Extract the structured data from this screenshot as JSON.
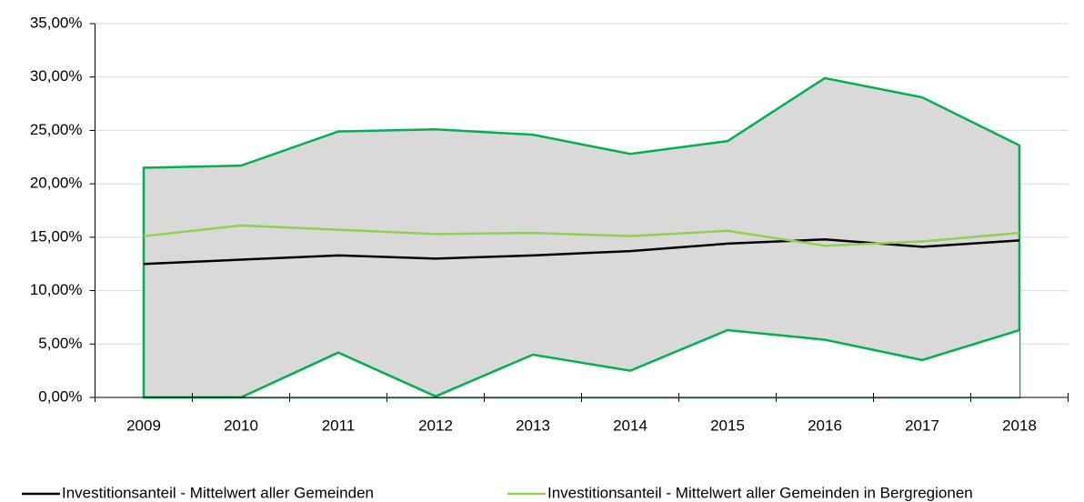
{
  "chart_data": {
    "type": "line",
    "categories": [
      "2009",
      "2010",
      "2011",
      "2012",
      "2013",
      "2014",
      "2015",
      "2016",
      "2017",
      "2018"
    ],
    "series": [
      {
        "name": "Investitionsanteil - Mittelwert aller Gemeinden",
        "color": "#000000",
        "values": [
          12.5,
          12.9,
          13.3,
          13.0,
          13.3,
          13.7,
          14.4,
          14.8,
          14.1,
          14.7
        ]
      },
      {
        "name": "Investitionsanteil - Mittelwert aller Gemeinden in Bergregionen",
        "color": "#92d050",
        "values": [
          15.1,
          16.1,
          15.7,
          15.3,
          15.4,
          15.1,
          15.6,
          14.2,
          14.6,
          15.4
        ]
      }
    ],
    "band": {
      "color": "#00b050",
      "fill": "#d9d9d9",
      "upper": [
        21.5,
        21.7,
        24.9,
        25.1,
        24.6,
        22.8,
        24.0,
        29.9,
        28.1,
        23.6
      ],
      "lower": [
        0,
        0,
        4.2,
        0.1,
        4.0,
        2.5,
        6.3,
        5.4,
        3.5,
        6.3
      ]
    },
    "ylim": [
      0,
      35
    ],
    "yticks": [
      {
        "value": 0,
        "label": "0,00%"
      },
      {
        "value": 5,
        "label": "5,00%"
      },
      {
        "value": 10,
        "label": "10,00%"
      },
      {
        "value": 15,
        "label": "15,00%"
      },
      {
        "value": 20,
        "label": "20,00%"
      },
      {
        "value": 25,
        "label": "25,00%"
      },
      {
        "value": 30,
        "label": "30,00%"
      },
      {
        "value": 35,
        "label": "35,00%"
      }
    ],
    "grid": true
  }
}
